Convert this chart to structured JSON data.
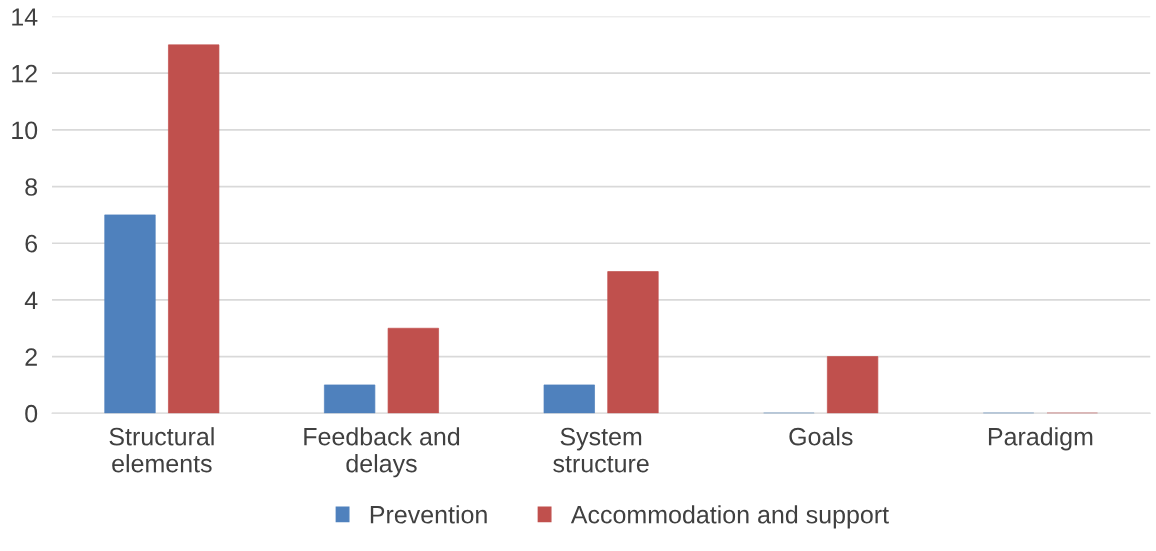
{
  "chart_data": {
    "type": "bar",
    "categories": [
      "Structural\nelements",
      "Feedback and\ndelays",
      "System\nstructure",
      "Goals",
      "Paradigm"
    ],
    "series": [
      {
        "name": "Prevention",
        "color": "#4f81bd",
        "values": [
          7,
          1,
          1,
          0,
          0
        ]
      },
      {
        "name": "Accommodation and support",
        "color": "#c0504d",
        "values": [
          13,
          3,
          5,
          2,
          0
        ]
      }
    ],
    "ylim": [
      0,
      14
    ],
    "yticks": [
      0,
      2,
      4,
      6,
      8,
      10,
      12,
      14
    ],
    "grid": "y",
    "legend": "bottom"
  }
}
